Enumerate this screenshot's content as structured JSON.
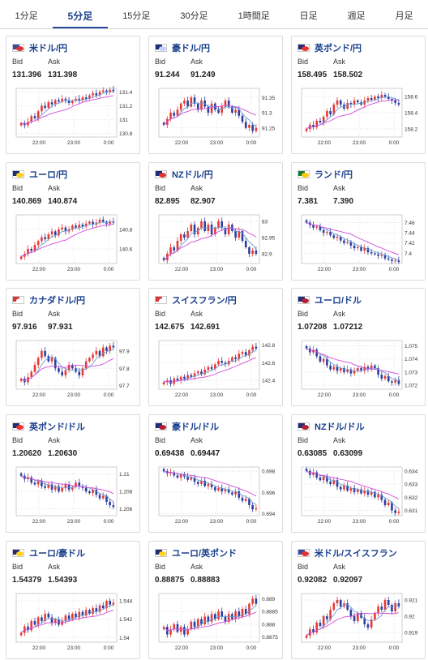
{
  "tabs": [
    {
      "label": "1分足",
      "active": false
    },
    {
      "label": "5分足",
      "active": true
    },
    {
      "label": "15分足",
      "active": false
    },
    {
      "label": "30分足",
      "active": false
    },
    {
      "label": "1時間足",
      "active": false
    },
    {
      "label": "日足",
      "active": false
    },
    {
      "label": "週足",
      "active": false
    },
    {
      "label": "月足",
      "active": false
    }
  ],
  "labels": {
    "bid": "Bid",
    "ask": "Ask"
  },
  "x_ticks": [
    "22:00",
    "23:00",
    "0:00"
  ],
  "colors": {
    "up": "#e53935",
    "down": "#2c3e9e",
    "ma_short": "#6a9fd8",
    "ma_long": "#d04adb",
    "accent": "#1a3f8c"
  },
  "cards": [
    {
      "pair": "米ドル/円",
      "bid": "131.396",
      "ask": "131.398",
      "flag": [
        "#3b4a9a",
        "#d33"
      ],
      "chart_data": {
        "type": "candlestick",
        "y_ticks": [
          "131.4",
          "131.2",
          "131",
          "130.8"
        ],
        "ylim": [
          130.75,
          131.45
        ],
        "trend": "up",
        "close": [
          130.95,
          130.92,
          130.97,
          131.05,
          131.02,
          131.12,
          131.2,
          131.17,
          131.25,
          131.22,
          131.28,
          131.26,
          131.3,
          131.28,
          131.24,
          131.27,
          131.3,
          131.28,
          131.32,
          131.3,
          131.35,
          131.38,
          131.35,
          131.4,
          131.42,
          131.4,
          131.43,
          131.41
        ]
      }
    },
    {
      "pair": "豪ドル/円",
      "bid": "91.244",
      "ask": "91.249",
      "flag": [
        "#1e2d78",
        "#c8d0ff"
      ],
      "chart_data": {
        "type": "candlestick",
        "y_ticks": [
          "91.35",
          "91.3",
          "91.25"
        ],
        "ylim": [
          91.22,
          91.38
        ],
        "trend": "down",
        "close": [
          91.26,
          91.28,
          91.3,
          91.29,
          91.31,
          91.33,
          91.34,
          91.32,
          91.35,
          91.33,
          91.31,
          91.34,
          91.32,
          91.3,
          91.33,
          91.31,
          91.3,
          91.32,
          91.34,
          91.32,
          91.3,
          91.31,
          91.29,
          91.27,
          91.25,
          91.26,
          91.24,
          91.25
        ]
      }
    },
    {
      "pair": "英ポンド/円",
      "bid": "158.495",
      "ask": "158.502",
      "flag": [
        "#1e2d78",
        "#e33"
      ],
      "chart_data": {
        "type": "candlestick",
        "y_ticks": [
          "158.6",
          "158.4",
          "158.2"
        ],
        "ylim": [
          158.1,
          158.7
        ],
        "trend": "up",
        "close": [
          158.2,
          158.25,
          158.22,
          158.3,
          158.28,
          158.35,
          158.42,
          158.38,
          158.5,
          158.55,
          158.5,
          158.45,
          158.52,
          158.5,
          158.55,
          158.53,
          158.5,
          158.55,
          158.58,
          158.56,
          158.6,
          158.58,
          158.62,
          158.6,
          158.57,
          158.55,
          158.52,
          158.5
        ]
      }
    },
    {
      "pair": "ユーロ/円",
      "bid": "140.869",
      "ask": "140.874",
      "flag": [
        "#1e2d78",
        "#ffd21f"
      ],
      "chart_data": {
        "type": "candlestick",
        "y_ticks": [
          "140.8",
          "140.6"
        ],
        "ylim": [
          140.45,
          140.95
        ],
        "trend": "up",
        "close": [
          140.52,
          140.55,
          140.6,
          140.58,
          140.64,
          140.68,
          140.72,
          140.7,
          140.75,
          140.78,
          140.74,
          140.8,
          140.82,
          140.78,
          140.8,
          140.84,
          140.82,
          140.85,
          140.83,
          140.86,
          140.88,
          140.85,
          140.87,
          140.9,
          140.88,
          140.86,
          140.88,
          140.87
        ]
      }
    },
    {
      "pair": "NZドル/円",
      "bid": "82.895",
      "ask": "82.907",
      "flag": [
        "#1e2d78",
        "#d33"
      ],
      "chart_data": {
        "type": "candlestick",
        "y_ticks": [
          "83",
          "82.95",
          "82.9"
        ],
        "ylim": [
          82.87,
          83.02
        ],
        "trend": "down",
        "close": [
          82.88,
          82.9,
          82.92,
          82.91,
          82.94,
          82.96,
          82.95,
          82.97,
          82.99,
          82.96,
          82.98,
          83.0,
          82.97,
          82.99,
          82.96,
          82.98,
          83.0,
          82.98,
          82.96,
          82.99,
          82.97,
          82.95,
          82.97,
          82.94,
          82.92,
          82.9,
          82.91,
          82.9
        ]
      }
    },
    {
      "pair": "ランド/円",
      "bid": "7.381",
      "ask": "7.390",
      "flag": [
        "#1a7a3a",
        "#ffcc00"
      ],
      "chart_data": {
        "type": "candlestick",
        "y_ticks": [
          "7.46",
          "7.44",
          "7.42",
          "7.4"
        ],
        "ylim": [
          7.38,
          7.475
        ],
        "trend": "down",
        "close": [
          7.46,
          7.455,
          7.45,
          7.452,
          7.445,
          7.44,
          7.442,
          7.435,
          7.43,
          7.432,
          7.425,
          7.42,
          7.422,
          7.415,
          7.41,
          7.412,
          7.405,
          7.41,
          7.402,
          7.4,
          7.398,
          7.395,
          7.397,
          7.39,
          7.388,
          7.385,
          7.386,
          7.383
        ]
      }
    },
    {
      "pair": "カナダドル/円",
      "bid": "97.916",
      "ask": "97.931",
      "flag": [
        "#d33",
        "#ffffff"
      ],
      "chart_data": {
        "type": "candlestick",
        "y_ticks": [
          "97.9",
          "97.8",
          "97.7"
        ],
        "ylim": [
          97.68,
          97.96
        ],
        "trend": "up",
        "close": [
          97.74,
          97.72,
          97.75,
          97.78,
          97.82,
          97.86,
          97.9,
          97.87,
          97.84,
          97.86,
          97.8,
          97.78,
          97.76,
          97.79,
          97.82,
          97.8,
          97.78,
          97.76,
          97.8,
          97.84,
          97.86,
          97.88,
          97.9,
          97.87,
          97.92,
          97.9,
          97.93,
          97.92
        ]
      }
    },
    {
      "pair": "スイスフラン/円",
      "bid": "142.675",
      "ask": "142.691",
      "flag": [
        "#d33",
        "#ffffff"
      ],
      "chart_data": {
        "type": "candlestick",
        "y_ticks": [
          "142.8",
          "142.6",
          "142.4"
        ],
        "ylim": [
          142.3,
          142.85
        ],
        "trend": "up",
        "close": [
          142.38,
          142.4,
          142.36,
          142.42,
          142.4,
          142.44,
          142.42,
          142.46,
          142.44,
          142.48,
          142.5,
          142.47,
          142.52,
          142.55,
          142.53,
          142.58,
          142.62,
          142.6,
          142.58,
          142.62,
          142.66,
          142.64,
          142.7,
          142.72,
          142.68,
          142.74,
          142.78,
          142.76
        ]
      }
    },
    {
      "pair": "ユーロ/ドル",
      "bid": "1.07208",
      "ask": "1.07212",
      "flag": [
        "#1e2d78",
        "#b22234"
      ],
      "chart_data": {
        "type": "candlestick",
        "y_ticks": [
          "1.075",
          "1.074",
          "1.073",
          "1.072"
        ],
        "ylim": [
          1.0717,
          1.0754
        ],
        "trend": "down",
        "close": [
          1.0748,
          1.0745,
          1.0747,
          1.0742,
          1.0738,
          1.074,
          1.0735,
          1.0732,
          1.0734,
          1.0731,
          1.0733,
          1.073,
          1.0732,
          1.0729,
          1.0731,
          1.0733,
          1.0731,
          1.0734,
          1.0732,
          1.0735,
          1.0733,
          1.0728,
          1.0725,
          1.0727,
          1.0723,
          1.0722,
          1.0724,
          1.0721
        ]
      }
    },
    {
      "pair": "英ポンド/ドル",
      "bid": "1.20620",
      "ask": "1.20630",
      "flag": [
        "#1e2d78",
        "#e33"
      ],
      "chart_data": {
        "type": "candlestick",
        "y_ticks": [
          "1.21",
          "1.208",
          "1.206"
        ],
        "ylim": [
          1.2052,
          1.2108
        ],
        "trend": "down",
        "close": [
          1.2098,
          1.2094,
          1.2096,
          1.209,
          1.2088,
          1.2092,
          1.2086,
          1.2084,
          1.2088,
          1.2082,
          1.2086,
          1.208,
          1.2084,
          1.2088,
          1.2082,
          1.2085,
          1.209,
          1.2086,
          1.2084,
          1.208,
          1.2078,
          1.2082,
          1.2076,
          1.2072,
          1.2075,
          1.2068,
          1.2064,
          1.2062
        ]
      }
    },
    {
      "pair": "豪ドル/ドル",
      "bid": "0.69438",
      "ask": "0.69447",
      "flag": [
        "#1e2d78",
        "#b22234"
      ],
      "chart_data": {
        "type": "candlestick",
        "y_ticks": [
          "0.698",
          "0.696",
          "0.694"
        ],
        "ylim": [
          0.6938,
          0.6984
        ],
        "trend": "down",
        "close": [
          0.698,
          0.6978,
          0.6979,
          0.6976,
          0.6974,
          0.6977,
          0.6975,
          0.6972,
          0.6974,
          0.697,
          0.6968,
          0.6971,
          0.6966,
          0.6968,
          0.6965,
          0.6962,
          0.6964,
          0.6961,
          0.6963,
          0.696,
          0.6958,
          0.6961,
          0.6955,
          0.6952,
          0.6954,
          0.6948,
          0.6944,
          0.6945
        ]
      }
    },
    {
      "pair": "NZドル/ドル",
      "bid": "0.63085",
      "ask": "0.63099",
      "flag": [
        "#1e2d78",
        "#b22234"
      ],
      "chart_data": {
        "type": "candlestick",
        "y_ticks": [
          "0.634",
          "0.633",
          "0.632",
          "0.631"
        ],
        "ylim": [
          0.6306,
          0.6343
        ],
        "trend": "down",
        "close": [
          0.634,
          0.6337,
          0.6339,
          0.6335,
          0.6333,
          0.6336,
          0.6332,
          0.633,
          0.6333,
          0.6328,
          0.6326,
          0.6329,
          0.6325,
          0.6327,
          0.6324,
          0.6326,
          0.6323,
          0.6325,
          0.6322,
          0.6324,
          0.632,
          0.6322,
          0.6318,
          0.6314,
          0.6316,
          0.631,
          0.6308,
          0.6309
        ]
      }
    },
    {
      "pair": "ユーロ/豪ドル",
      "bid": "1.54379",
      "ask": "1.54393",
      "flag": [
        "#1e2d78",
        "#ffd21f"
      ],
      "chart_data": {
        "type": "candlestick",
        "y_ticks": [
          "1.544",
          "1.542",
          "1.54"
        ],
        "ylim": [
          1.5395,
          1.5448
        ],
        "trend": "up",
        "close": [
          1.5405,
          1.5412,
          1.5408,
          1.5418,
          1.5414,
          1.5422,
          1.5418,
          1.5426,
          1.5422,
          1.5416,
          1.542,
          1.5414,
          1.5418,
          1.5424,
          1.542,
          1.5426,
          1.5422,
          1.5428,
          1.5424,
          1.543,
          1.5426,
          1.5432,
          1.5428,
          1.5435,
          1.5432,
          1.544,
          1.5436,
          1.5438
        ]
      }
    },
    {
      "pair": "ユーロ/英ポンド",
      "bid": "0.88875",
      "ask": "0.88883",
      "flag": [
        "#1e2d78",
        "#ffd21f"
      ],
      "chart_data": {
        "type": "candlestick",
        "y_ticks": [
          "0.889",
          "0.8885",
          "0.888",
          "0.8875"
        ],
        "ylim": [
          0.8873,
          0.8892
        ],
        "trend": "up",
        "close": [
          0.8879,
          0.8876,
          0.8878,
          0.888,
          0.8877,
          0.8879,
          0.8876,
          0.8878,
          0.8881,
          0.8879,
          0.8882,
          0.888,
          0.8883,
          0.8881,
          0.8884,
          0.8882,
          0.8885,
          0.8883,
          0.8881,
          0.8884,
          0.8882,
          0.8885,
          0.8883,
          0.8886,
          0.8884,
          0.8888,
          0.889,
          0.8888
        ]
      }
    },
    {
      "pair": "米ドル/スイスフラン",
      "bid": "0.92082",
      "ask": "0.92097",
      "flag": [
        "#3b4a9a",
        "#d33"
      ],
      "chart_data": {
        "type": "candlestick",
        "y_ticks": [
          "0.921",
          "0.92",
          "0.919"
        ],
        "ylim": [
          0.9184,
          0.9214
        ],
        "trend": "up",
        "close": [
          0.9188,
          0.9192,
          0.919,
          0.9196,
          0.9194,
          0.92,
          0.9198,
          0.9204,
          0.9208,
          0.921,
          0.9206,
          0.9208,
          0.9204,
          0.92,
          0.9197,
          0.9202,
          0.9199,
          0.9195,
          0.9193,
          0.9198,
          0.9202,
          0.9206,
          0.9204,
          0.921,
          0.9207,
          0.9203,
          0.9208,
          0.9206
        ]
      }
    }
  ]
}
